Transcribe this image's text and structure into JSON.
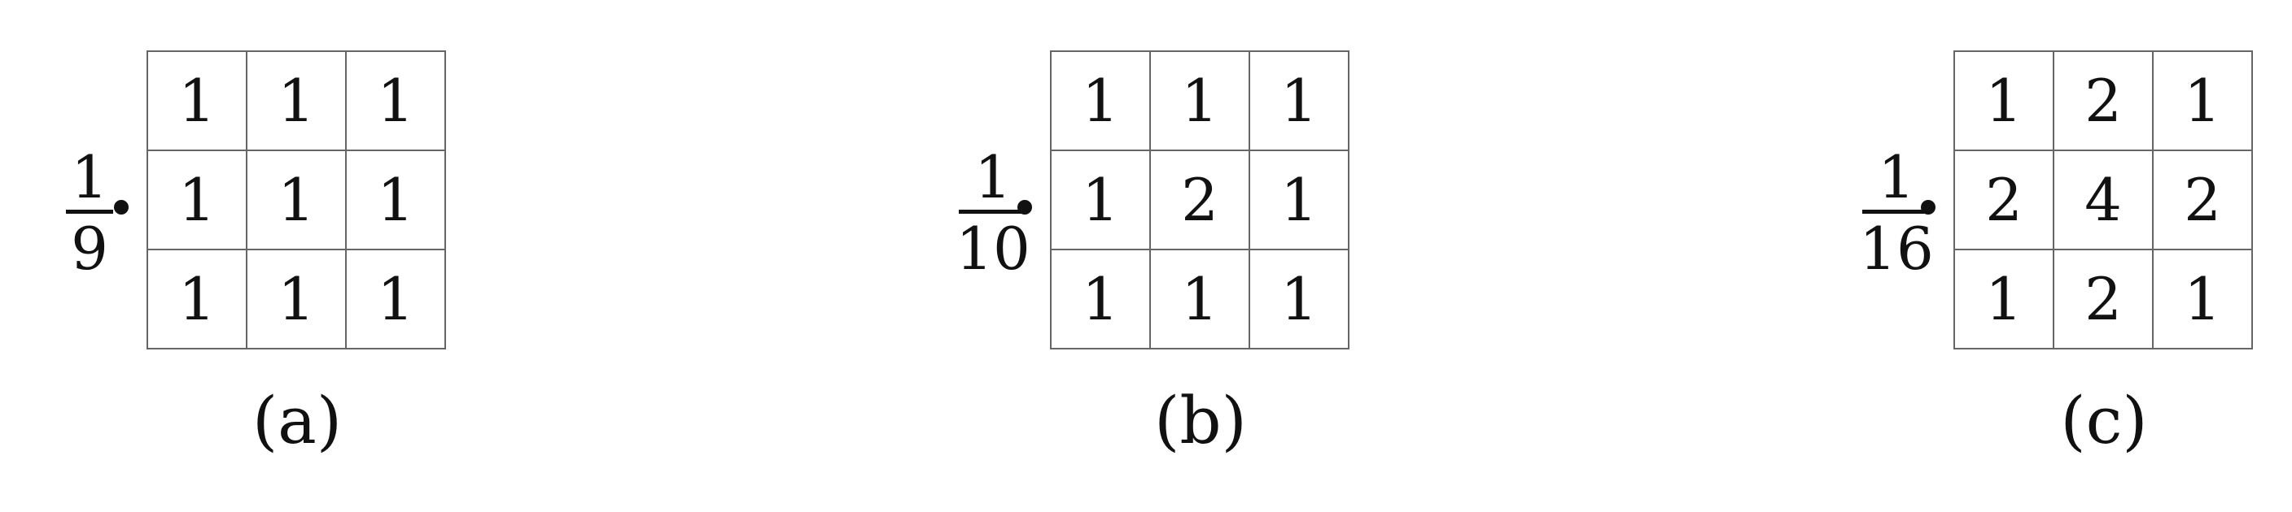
{
  "kernels": [
    {
      "numerator": "1",
      "denominator": "9",
      "operator": "•",
      "cells": [
        "1",
        "1",
        "1",
        "1",
        "1",
        "1",
        "1",
        "1",
        "1"
      ],
      "caption": "(a)"
    },
    {
      "numerator": "1",
      "denominator": "10",
      "operator": "•",
      "cells": [
        "1",
        "1",
        "1",
        "1",
        "2",
        "1",
        "1",
        "1",
        "1"
      ],
      "caption": "(b)"
    },
    {
      "numerator": "1",
      "denominator": "16",
      "operator": "•",
      "cells": [
        "1",
        "2",
        "1",
        "2",
        "4",
        "2",
        "1",
        "2",
        "1"
      ],
      "caption": "(c)"
    }
  ]
}
